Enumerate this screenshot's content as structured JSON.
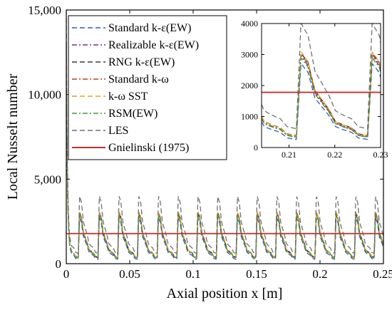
{
  "chart_data": {
    "type": "line",
    "xlabel": "Axial position x [m]",
    "ylabel": "Local Nusselt number",
    "xlim": [
      0,
      0.25
    ],
    "ylim": [
      0,
      15000
    ],
    "xticks": [
      "0",
      "0.05",
      "0.1",
      "0.15",
      "0.2",
      "0.25"
    ],
    "yticks": [
      "0",
      "5,000",
      "10,000",
      "15,000"
    ],
    "grid": false,
    "legend_position": "top-left",
    "legend": [
      "Standard k-ε(EW)",
      "Realizable k-ε(EW)",
      "RNG k-ε(EW)",
      "Standard k-ω",
      "k-ω SST",
      "RSM(EW)",
      "LES",
      "Gnielinski (1975)"
    ],
    "periodic_profile": {
      "period": 0.01555,
      "first_peak_x": 0.0105,
      "x": [
        0,
        0.0015,
        0.003,
        0.006,
        0.0075,
        0.009,
        0.011,
        0.0125,
        0.0145,
        0.0155
      ],
      "y": [
        3000,
        2700,
        1800,
        1200,
        800,
        700,
        600,
        400,
        350,
        3000
      ]
    },
    "series": [
      {
        "name": "Standard k-ε(EW)",
        "color": "#2f5fb3",
        "dash": "dashed",
        "scale": 0.92,
        "offset": -60
      },
      {
        "name": "Realizable k-ε(EW)",
        "color": "#7b2f8f",
        "dash": "dashdot",
        "scale": 0.98,
        "offset": 0
      },
      {
        "name": "RNG k-ε(EW)",
        "color": "#3a3a3a",
        "dash": "dashed",
        "scale": 1.0,
        "offset": 40
      },
      {
        "name": "Standard k-ω",
        "color": "#b2452a",
        "dash": "dashdot",
        "scale": 1.0,
        "offset": 0
      },
      {
        "name": "k-ω SST",
        "color": "#e0a21c",
        "dash": "dashed",
        "scale": 1.02,
        "offset": 20
      },
      {
        "name": "RSM(EW)",
        "color": "#3e9a3e",
        "dash": "dashdot",
        "scale": 0.96,
        "offset": 0
      },
      {
        "name": "LES",
        "color": "#6f6f7a",
        "dash": "dashed",
        "scale": 1.28,
        "offset": 160
      },
      {
        "name": "Gnielinski (1975)",
        "color": "#c62f2f",
        "dash": "solid",
        "constant": 1780
      }
    ],
    "inset": {
      "xlim": [
        0.204,
        0.23
      ],
      "ylim": [
        0,
        4000
      ],
      "xticks": [
        "0.21",
        "0.22",
        "0.23"
      ],
      "yticks": [
        "0",
        "1000",
        "2000",
        "3000",
        "4000"
      ]
    }
  }
}
